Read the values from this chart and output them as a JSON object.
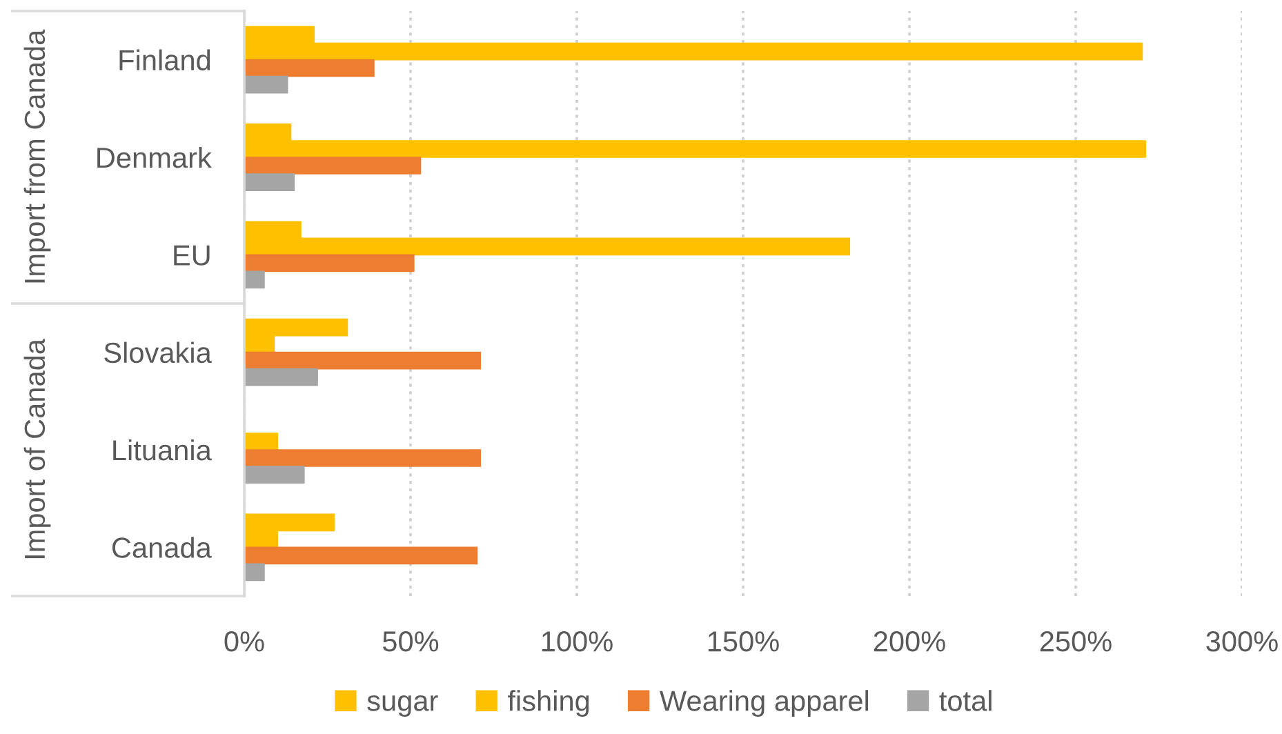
{
  "chart_data": {
    "type": "bar",
    "orientation": "horizontal",
    "categories": [
      "Finland",
      "Denmark",
      "EU",
      "Slovakia",
      "Lituania",
      "Canada"
    ],
    "series": [
      {
        "name": "sugar",
        "color": "#ffc000",
        "values": [
          21,
          14,
          17,
          31,
          0,
          27
        ]
      },
      {
        "name": "fishing",
        "color": "#ffc000",
        "values": [
          270,
          271,
          182,
          9,
          10,
          10
        ]
      },
      {
        "name": "Wearing apparel",
        "color": "#ed7d31",
        "values": [
          39,
          53,
          51,
          71,
          71,
          70
        ]
      },
      {
        "name": "total",
        "color": "#a5a5a5",
        "values": [
          13,
          15,
          6,
          22,
          18,
          6
        ]
      }
    ],
    "xlim": [
      0,
      300
    ],
    "xticks": [
      {
        "value": 0,
        "label": "0%"
      },
      {
        "value": 50,
        "label": "50%"
      },
      {
        "value": 100,
        "label": "100%"
      },
      {
        "value": 150,
        "label": "150%"
      },
      {
        "value": 200,
        "label": "200%"
      },
      {
        "value": 250,
        "label": "250%"
      },
      {
        "value": 300,
        "label": "300%"
      }
    ],
    "annotations": [
      "Import from Canada",
      "Import of Canada"
    ],
    "grid": "x",
    "legend": "bottom"
  }
}
